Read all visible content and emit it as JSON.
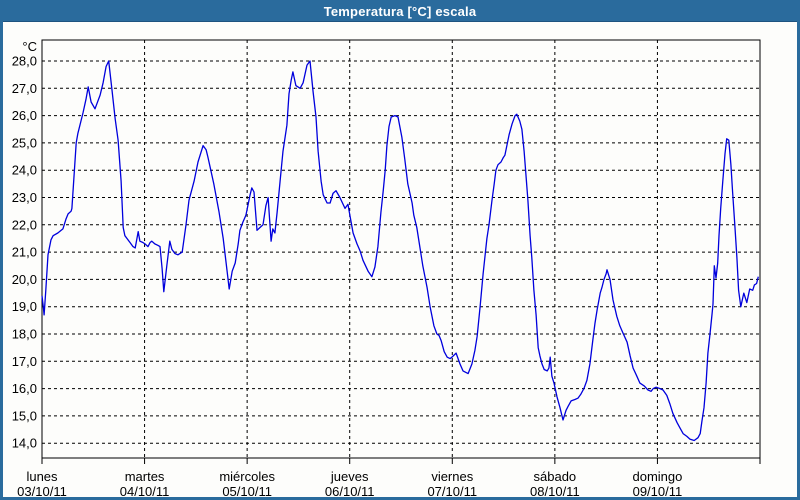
{
  "title": "Temperatura [°C] escala",
  "colors": {
    "accent_blue": "#2a6b9d",
    "line_blue": "#0000dd",
    "grid_black": "#000000",
    "background": "#fdfdfb",
    "title_text": "#ffffff"
  },
  "chart_data": {
    "type": "line",
    "title": "Temperatura [°C] escala",
    "ylabel": "°C",
    "xlabel": "",
    "grid": true,
    "legend_position": "none",
    "ylim_gridlines": [
      14,
      28
    ],
    "y_tick_values": [
      28,
      27,
      26,
      25,
      24,
      23,
      22,
      21,
      20,
      19,
      18,
      17,
      16,
      15,
      14
    ],
    "y_tick_labels": [
      "28,0",
      "27,0",
      "26,0",
      "25,0",
      "24,0",
      "23,0",
      "22,0",
      "21,0",
      "20,0",
      "19,0",
      "18,0",
      "17,0",
      "16,0",
      "15,0",
      "14,0"
    ],
    "x_days": [
      {
        "name": "lunes",
        "date": "03/10/11"
      },
      {
        "name": "martes",
        "date": "04/10/11"
      },
      {
        "name": "miércoles",
        "date": "05/10/11"
      },
      {
        "name": "jueves",
        "date": "06/10/11"
      },
      {
        "name": "viernes",
        "date": "07/10/11"
      },
      {
        "name": "sábado",
        "date": "08/10/11"
      },
      {
        "name": "domingo",
        "date": "09/10/11"
      }
    ],
    "x_unit": "hours_since_monday_00h",
    "x_range_hours": [
      0,
      168
    ],
    "series": [
      {
        "name": "Temperatura",
        "color": "#0000dd",
        "points": [
          [
            0,
            19.4
          ],
          [
            0.3,
            19.0
          ],
          [
            0.5,
            18.7
          ],
          [
            0.9,
            19.6
          ],
          [
            1.4,
            20.9
          ],
          [
            2.1,
            21.45
          ],
          [
            2.6,
            21.6
          ],
          [
            3.7,
            21.7
          ],
          [
            4.9,
            21.85
          ],
          [
            5.6,
            22.2
          ],
          [
            6.1,
            22.4
          ],
          [
            6.8,
            22.5
          ],
          [
            7.0,
            22.6
          ],
          [
            8.0,
            25.0
          ],
          [
            8.4,
            25.35
          ],
          [
            9.6,
            26.1
          ],
          [
            10.3,
            26.6
          ],
          [
            10.8,
            27.05
          ],
          [
            11.5,
            26.5
          ],
          [
            12.4,
            26.25
          ],
          [
            13.6,
            26.75
          ],
          [
            14.3,
            27.2
          ],
          [
            15.0,
            27.8
          ],
          [
            15.6,
            28.0
          ],
          [
            16.4,
            26.9
          ],
          [
            17.1,
            25.9
          ],
          [
            17.8,
            25.1
          ],
          [
            18.5,
            23.6
          ],
          [
            19.0,
            21.9
          ],
          [
            19.4,
            21.6
          ],
          [
            19.9,
            21.5
          ],
          [
            20.6,
            21.35
          ],
          [
            21.3,
            21.2
          ],
          [
            21.8,
            21.15
          ],
          [
            22.5,
            21.75
          ],
          [
            22.9,
            21.4
          ],
          [
            23.6,
            21.35
          ],
          [
            24.1,
            21.3
          ],
          [
            24.8,
            21.2
          ],
          [
            25.3,
            21.35
          ],
          [
            25.7,
            21.4
          ],
          [
            26.4,
            21.3
          ],
          [
            27.1,
            21.25
          ],
          [
            27.6,
            21.2
          ],
          [
            28.1,
            20.4
          ],
          [
            28.5,
            19.55
          ],
          [
            29.2,
            20.5
          ],
          [
            29.9,
            21.4
          ],
          [
            30.4,
            21.1
          ],
          [
            31.1,
            20.95
          ],
          [
            31.8,
            20.9
          ],
          [
            32.8,
            21.0
          ],
          [
            33.7,
            22.0
          ],
          [
            34.4,
            22.9
          ],
          [
            35.6,
            23.6
          ],
          [
            36.5,
            24.3
          ],
          [
            37.7,
            24.9
          ],
          [
            38.4,
            24.75
          ],
          [
            38.8,
            24.5
          ],
          [
            39.5,
            24.0
          ],
          [
            40.2,
            23.5
          ],
          [
            41.4,
            22.5
          ],
          [
            42.4,
            21.5
          ],
          [
            43.3,
            20.3
          ],
          [
            43.8,
            19.65
          ],
          [
            44.5,
            20.3
          ],
          [
            45.2,
            20.6
          ],
          [
            45.9,
            21.3
          ],
          [
            46.3,
            21.8
          ],
          [
            47.0,
            22.1
          ],
          [
            47.7,
            22.35
          ],
          [
            48.7,
            23.1
          ],
          [
            49.1,
            23.35
          ],
          [
            49.6,
            23.2
          ],
          [
            50.3,
            21.8
          ],
          [
            51.0,
            21.9
          ],
          [
            51.7,
            22.0
          ],
          [
            52.4,
            22.7
          ],
          [
            52.9,
            23.0
          ],
          [
            53.6,
            21.4
          ],
          [
            54.0,
            21.85
          ],
          [
            54.5,
            21.7
          ],
          [
            55.0,
            22.45
          ],
          [
            55.7,
            23.6
          ],
          [
            56.4,
            24.7
          ],
          [
            57.3,
            25.65
          ],
          [
            57.8,
            26.8
          ],
          [
            58.3,
            27.3
          ],
          [
            58.7,
            27.6
          ],
          [
            59.4,
            27.1
          ],
          [
            60.4,
            27.0
          ],
          [
            61.1,
            27.2
          ],
          [
            62.0,
            27.85
          ],
          [
            62.7,
            28.0
          ],
          [
            63.4,
            26.9
          ],
          [
            64.1,
            25.95
          ],
          [
            64.6,
            24.7
          ],
          [
            65.3,
            23.6
          ],
          [
            65.8,
            23.1
          ],
          [
            66.7,
            22.8
          ],
          [
            67.4,
            22.8
          ],
          [
            68.1,
            23.15
          ],
          [
            68.8,
            23.25
          ],
          [
            69.7,
            23.0
          ],
          [
            70.9,
            22.6
          ],
          [
            71.6,
            22.75
          ],
          [
            71.8,
            22.55
          ],
          [
            72.8,
            21.7
          ],
          [
            73.7,
            21.3
          ],
          [
            74.4,
            21.05
          ],
          [
            75.1,
            20.7
          ],
          [
            76.3,
            20.3
          ],
          [
            77.2,
            20.1
          ],
          [
            77.9,
            20.45
          ],
          [
            78.6,
            21.2
          ],
          [
            79.3,
            22.45
          ],
          [
            79.8,
            23.2
          ],
          [
            80.3,
            24.0
          ],
          [
            80.7,
            24.9
          ],
          [
            81.2,
            25.6
          ],
          [
            81.7,
            25.95
          ],
          [
            82.6,
            26.0
          ],
          [
            83.3,
            25.95
          ],
          [
            84.2,
            25.2
          ],
          [
            84.9,
            24.4
          ],
          [
            85.6,
            23.5
          ],
          [
            86.6,
            22.8
          ],
          [
            87.0,
            22.35
          ],
          [
            87.7,
            21.9
          ],
          [
            88.4,
            21.2
          ],
          [
            89.1,
            20.5
          ],
          [
            90.1,
            19.7
          ],
          [
            90.8,
            19.0
          ],
          [
            91.7,
            18.3
          ],
          [
            92.4,
            18.0
          ],
          [
            92.9,
            17.95
          ],
          [
            93.4,
            17.75
          ],
          [
            94.1,
            17.35
          ],
          [
            94.8,
            17.15
          ],
          [
            95.5,
            17.1
          ],
          [
            95.9,
            17.15
          ],
          [
            96.9,
            17.3
          ],
          [
            97.8,
            16.9
          ],
          [
            98.5,
            16.65
          ],
          [
            99.7,
            16.55
          ],
          [
            100.6,
            16.9
          ],
          [
            101.3,
            17.4
          ],
          [
            101.8,
            17.9
          ],
          [
            102.5,
            19.0
          ],
          [
            103.2,
            20.2
          ],
          [
            104.1,
            21.5
          ],
          [
            104.6,
            22.0
          ],
          [
            105.3,
            22.9
          ],
          [
            105.8,
            23.5
          ],
          [
            106.2,
            24.0
          ],
          [
            106.7,
            24.2
          ],
          [
            107.4,
            24.3
          ],
          [
            107.9,
            24.45
          ],
          [
            108.3,
            24.55
          ],
          [
            109.3,
            25.3
          ],
          [
            110.0,
            25.7
          ],
          [
            110.7,
            26.0
          ],
          [
            111.1,
            26.05
          ],
          [
            111.8,
            25.8
          ],
          [
            112.3,
            25.5
          ],
          [
            112.8,
            24.7
          ],
          [
            113.2,
            23.9
          ],
          [
            113.7,
            22.9
          ],
          [
            114.2,
            21.6
          ],
          [
            114.6,
            20.8
          ],
          [
            115.1,
            19.6
          ],
          [
            115.6,
            18.7
          ],
          [
            116.1,
            17.5
          ],
          [
            116.5,
            17.2
          ],
          [
            117.0,
            16.9
          ],
          [
            117.5,
            16.7
          ],
          [
            118.2,
            16.65
          ],
          [
            118.6,
            16.75
          ],
          [
            118.9,
            17.15
          ],
          [
            119.3,
            16.45
          ],
          [
            119.8,
            16.2
          ],
          [
            120.5,
            15.7
          ],
          [
            121.2,
            15.3
          ],
          [
            121.9,
            14.85
          ],
          [
            122.6,
            15.2
          ],
          [
            123.1,
            15.35
          ],
          [
            123.8,
            15.55
          ],
          [
            124.7,
            15.6
          ],
          [
            125.4,
            15.65
          ],
          [
            126.1,
            15.8
          ],
          [
            126.8,
            16.0
          ],
          [
            127.5,
            16.3
          ],
          [
            128.2,
            16.9
          ],
          [
            128.9,
            17.8
          ],
          [
            129.4,
            18.4
          ],
          [
            129.9,
            18.9
          ],
          [
            130.6,
            19.5
          ],
          [
            131.0,
            19.7
          ],
          [
            131.5,
            20.0
          ],
          [
            132.0,
            20.2
          ],
          [
            132.2,
            20.35
          ],
          [
            132.9,
            20.0
          ],
          [
            133.6,
            19.25
          ],
          [
            134.5,
            18.65
          ],
          [
            135.2,
            18.3
          ],
          [
            135.9,
            18.05
          ],
          [
            136.9,
            17.7
          ],
          [
            137.6,
            17.2
          ],
          [
            138.3,
            16.75
          ],
          [
            139.2,
            16.45
          ],
          [
            139.9,
            16.2
          ],
          [
            140.9,
            16.1
          ],
          [
            141.8,
            15.95
          ],
          [
            142.5,
            15.9
          ],
          [
            143.0,
            16.0
          ],
          [
            143.7,
            16.05
          ],
          [
            144.6,
            16.0
          ],
          [
            145.3,
            15.95
          ],
          [
            146.2,
            15.75
          ],
          [
            146.9,
            15.45
          ],
          [
            147.6,
            15.1
          ],
          [
            148.6,
            14.75
          ],
          [
            149.3,
            14.55
          ],
          [
            150.0,
            14.35
          ],
          [
            150.9,
            14.25
          ],
          [
            151.6,
            14.15
          ],
          [
            152.6,
            14.1
          ],
          [
            153.5,
            14.2
          ],
          [
            154.0,
            14.35
          ],
          [
            154.4,
            14.8
          ],
          [
            154.9,
            15.3
          ],
          [
            155.4,
            16.2
          ],
          [
            155.8,
            17.3
          ],
          [
            156.3,
            18.0
          ],
          [
            156.8,
            18.75
          ],
          [
            157.0,
            19.1
          ],
          [
            157.3,
            20.5
          ],
          [
            157.7,
            20.05
          ],
          [
            158.1,
            20.6
          ],
          [
            158.4,
            21.6
          ],
          [
            158.8,
            22.6
          ],
          [
            159.3,
            23.6
          ],
          [
            159.8,
            24.6
          ],
          [
            160.2,
            25.15
          ],
          [
            160.7,
            25.1
          ],
          [
            161.2,
            24.2
          ],
          [
            161.6,
            23.2
          ],
          [
            162.1,
            22.0
          ],
          [
            162.6,
            20.8
          ],
          [
            163.0,
            19.6
          ],
          [
            163.5,
            19.0
          ],
          [
            164.2,
            19.5
          ],
          [
            164.9,
            19.15
          ],
          [
            165.6,
            19.65
          ],
          [
            166.3,
            19.6
          ],
          [
            166.7,
            19.8
          ],
          [
            167.2,
            19.85
          ],
          [
            167.6,
            20.1
          ]
        ]
      }
    ]
  }
}
